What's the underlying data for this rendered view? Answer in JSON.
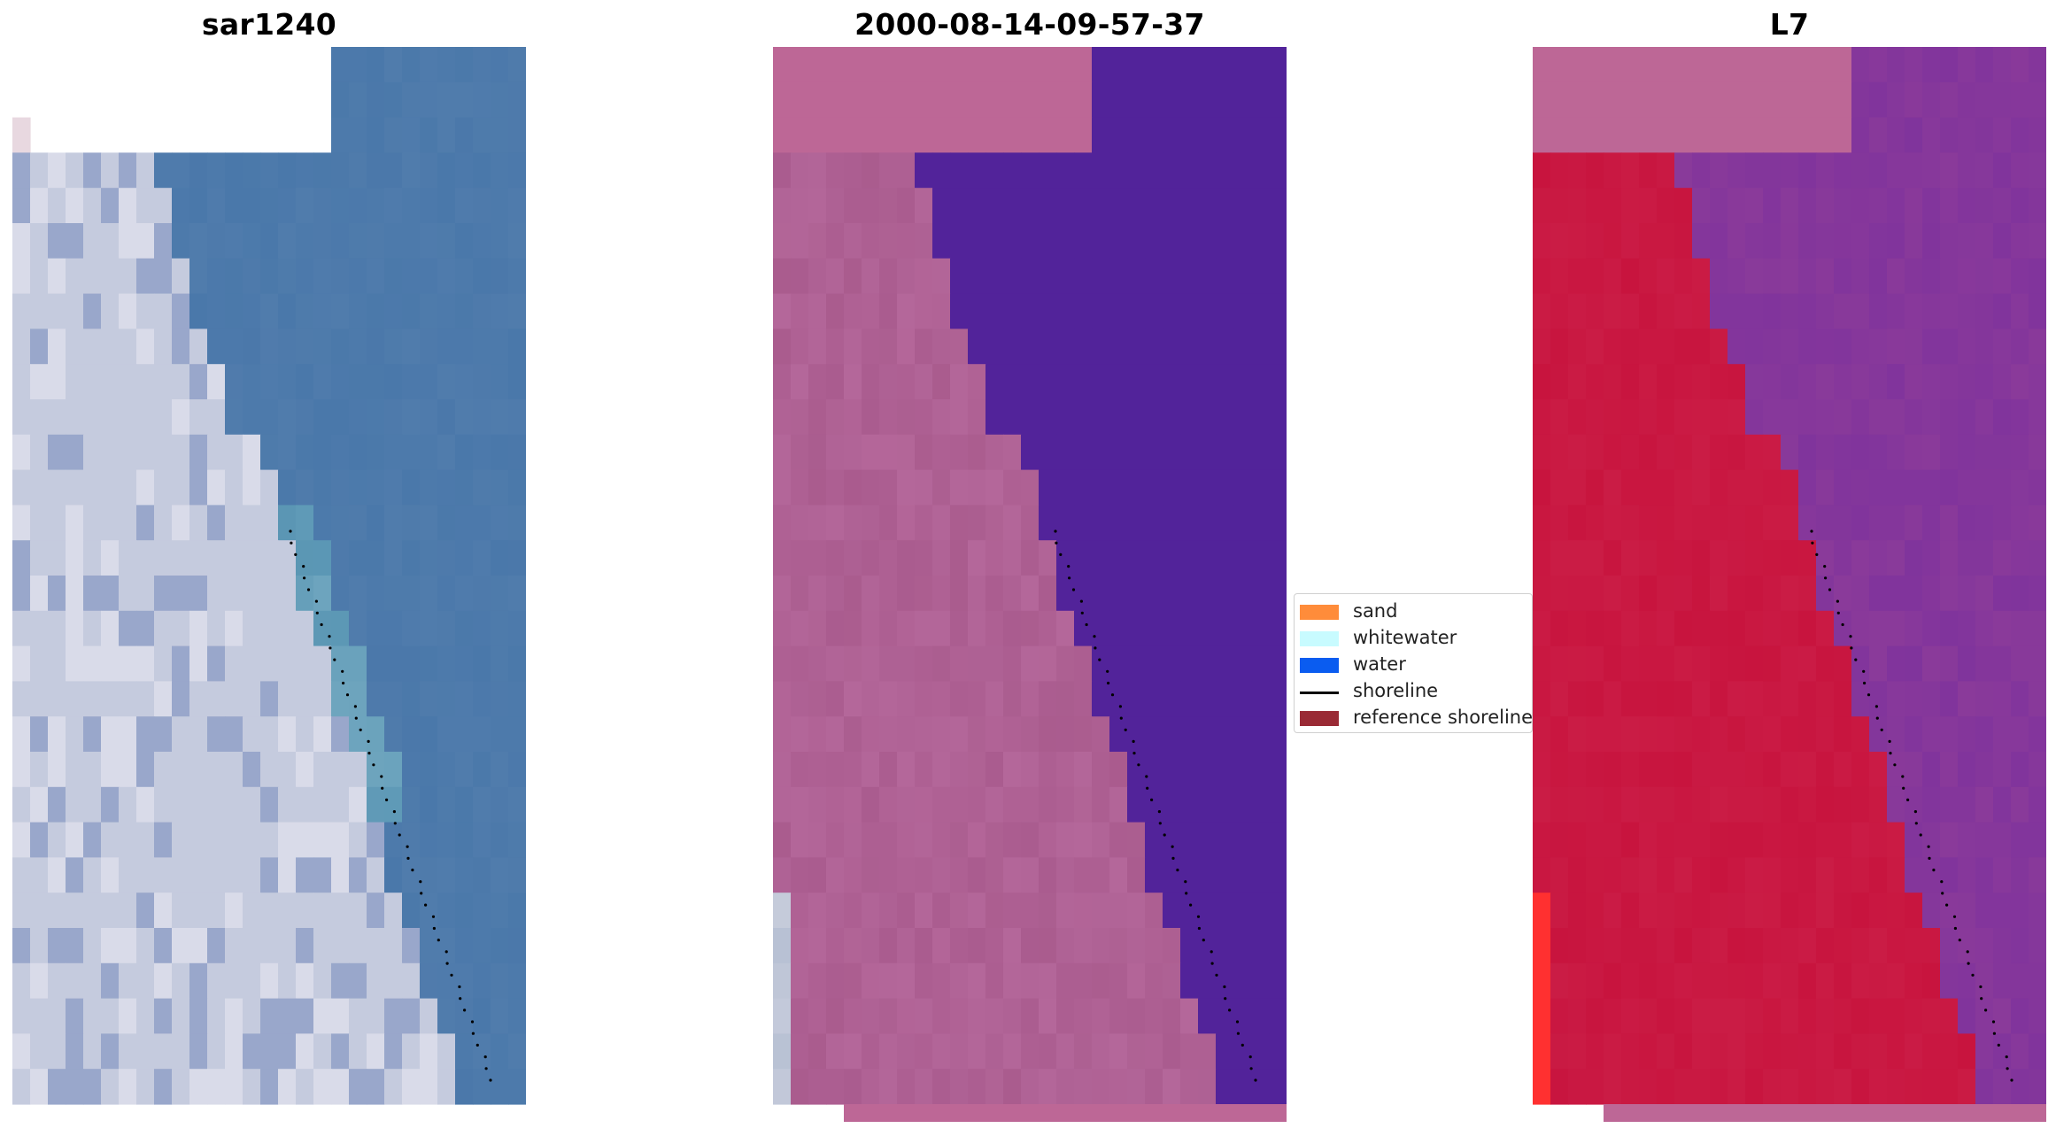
{
  "panels": {
    "rgb": {
      "title": "sar1240"
    },
    "classified": {
      "title": "2000-08-14-09-57-37"
    },
    "index": {
      "title": "L7"
    }
  },
  "legend": {
    "items": [
      {
        "label": "sand",
        "color": "#ff8c3a",
        "kind": "patch"
      },
      {
        "label": "whitewater",
        "color": "#c8fbff",
        "kind": "patch"
      },
      {
        "label": "water",
        "color": "#0a5cf0",
        "kind": "patch"
      },
      {
        "label": "shoreline",
        "color": "#000000",
        "kind": "line"
      },
      {
        "label": "reference shoreline",
        "color": "#9a2a35",
        "kind": "patch"
      }
    ]
  },
  "colors": {
    "rgb_water": "#4a78aa",
    "rgb_land": "#c2c8da",
    "class_land": "#b4679a",
    "class_water": "#52239a",
    "index_land": "#c8143e",
    "index_water": "#8a3a9a",
    "nodata_pink": "#bd6796"
  }
}
